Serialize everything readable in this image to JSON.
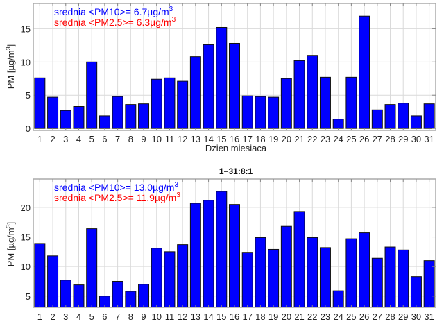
{
  "chart_data": [
    {
      "type": "bar",
      "title": "",
      "xlabel": "Dzien miesiaca",
      "ylabel": "PM [µg/m3]",
      "ylabel_base": "PM [µg/m",
      "ylabel_sup": "3",
      "ylabel_end": "]",
      "ylim": [
        -0.3,
        18.8
      ],
      "yticks": [
        0,
        5,
        10,
        15
      ],
      "grid": true,
      "categories": [
        "1",
        "2",
        "3",
        "4",
        "5",
        "6",
        "7",
        "8",
        "9",
        "10",
        "11",
        "12",
        "13",
        "14",
        "15",
        "16",
        "17",
        "18",
        "19",
        "20",
        "21",
        "22",
        "23",
        "24",
        "25",
        "26",
        "27",
        "28",
        "29",
        "30",
        "31"
      ],
      "series": [
        {
          "name": "PM",
          "color": "#0000ff",
          "values": [
            7.6,
            4.7,
            2.7,
            3.3,
            10.0,
            1.9,
            4.8,
            3.6,
            3.7,
            7.4,
            7.6,
            7.1,
            10.8,
            12.6,
            15.2,
            12.8,
            4.9,
            4.8,
            4.7,
            7.5,
            10.2,
            11.0,
            7.7,
            1.4,
            7.7,
            16.9,
            2.8,
            3.6,
            3.8,
            1.9,
            3.7
          ]
        }
      ],
      "annotations": [
        {
          "text": "srednia <PM10>= 6.7µg/m",
          "sup": "3",
          "color": "#0000ff"
        },
        {
          "text": "srednia <PM2.5>= 6.3µg/m",
          "sup": "3",
          "color": "#ff0000"
        }
      ]
    },
    {
      "type": "bar",
      "title": "1−31:8:1",
      "xlabel": "",
      "ylabel": "PM [µg/m3]",
      "ylabel_base": "PM [µg/m",
      "ylabel_sup": "3",
      "ylabel_end": "]",
      "ylim": [
        3.1,
        24.8
      ],
      "yticks": [
        5,
        10,
        15,
        20
      ],
      "grid": true,
      "categories": [
        "1",
        "2",
        "3",
        "4",
        "5",
        "6",
        "7",
        "8",
        "9",
        "10",
        "11",
        "12",
        "13",
        "14",
        "15",
        "16",
        "17",
        "18",
        "19",
        "20",
        "21",
        "22",
        "23",
        "24",
        "25",
        "26",
        "27",
        "28",
        "29",
        "30",
        "31"
      ],
      "series": [
        {
          "name": "PM",
          "color": "#0000ff",
          "values": [
            13.9,
            11.8,
            7.7,
            6.9,
            16.4,
            5.0,
            7.5,
            5.8,
            7.0,
            13.1,
            12.5,
            13.7,
            20.7,
            21.2,
            22.7,
            20.5,
            12.4,
            14.9,
            12.9,
            16.8,
            19.3,
            14.9,
            13.2,
            5.9,
            14.7,
            15.7,
            11.4,
            13.3,
            12.8,
            8.3,
            11.0
          ]
        }
      ],
      "annotations": [
        {
          "text": "srednia <PM10>= 13.0µg/m",
          "sup": "3",
          "color": "#0000ff"
        },
        {
          "text": "srednia <PM2.5>= 11.9µg/m",
          "sup": "3",
          "color": "#ff0000"
        }
      ]
    }
  ]
}
